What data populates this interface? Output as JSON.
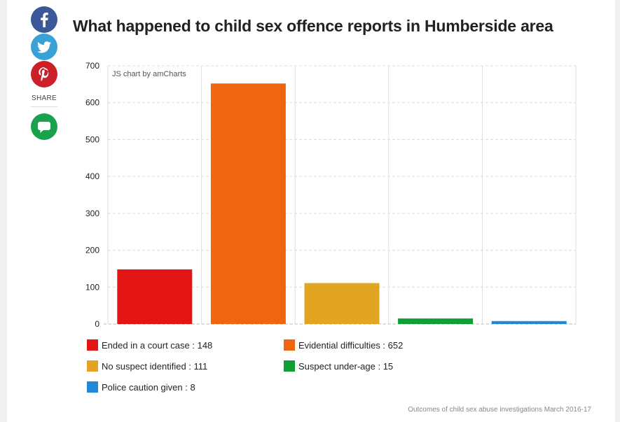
{
  "title": "What happened to child sex offence reports in Humberside area",
  "share": {
    "label": "SHARE",
    "buttons": [
      {
        "icon": "facebook-icon",
        "color": "#3b5998"
      },
      {
        "icon": "twitter-icon",
        "color": "#38a1d6"
      },
      {
        "icon": "pinterest-icon",
        "color": "#cb2027"
      },
      {
        "icon": "comment-icon",
        "color": "#1aa14c"
      }
    ]
  },
  "credit": "JS chart by amCharts",
  "footer": "Outcomes of child sex abuse investigations March 2016-17",
  "chart_data": {
    "type": "bar",
    "title": "What happened to child sex offence reports in Humberside area",
    "categories": [
      "Ended in a court case",
      "Evidential difficulties",
      "No suspect identified",
      "Suspect under-age",
      "Police caution given"
    ],
    "values": [
      148,
      652,
      111,
      15,
      8
    ],
    "colors": [
      "#e31515",
      "#ee6610",
      "#e2a423",
      "#109f35",
      "#1f88d9"
    ],
    "ylim": [
      0,
      700
    ],
    "yticks": [
      0,
      100,
      200,
      300,
      400,
      500,
      600,
      700
    ],
    "grid": true,
    "legend_position": "bottom",
    "legend": [
      {
        "text": "Ended in a court case : 148"
      },
      {
        "text": "Evidential difficulties : 652"
      },
      {
        "text": "No suspect identified : 111"
      },
      {
        "text": "Suspect under-age : 15"
      },
      {
        "text": "Police caution given : 8"
      }
    ]
  }
}
